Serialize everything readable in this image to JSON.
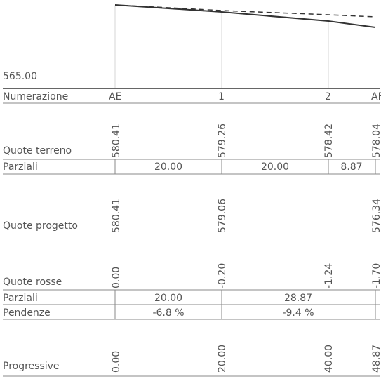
{
  "datum": "565.00",
  "row_labels": {
    "numerazione": "Numerazione",
    "quote_terreno": "Quote terreno",
    "parziali": "Parziali",
    "quote_progetto": "Quote progetto",
    "quote_rosse": "Quote rosse",
    "parziali_2": "Parziali",
    "pendenze": "Pendenze",
    "progressive": "Progressive"
  },
  "sections": [
    "AE",
    "1",
    "2",
    "AF"
  ],
  "quote_terreno": [
    "580.41",
    "579.26",
    "578.42",
    "578.04"
  ],
  "parziali_terreno": [
    "20.00",
    "20.00",
    "8.87"
  ],
  "quote_progetto": [
    "580.41",
    "579.06",
    "576.34"
  ],
  "quote_rosse": [
    "0.00",
    "-0.20",
    "-1.24",
    "-1.70"
  ],
  "parziali_progetto": [
    "20.00",
    "28.87"
  ],
  "pendenze": [
    "-6.8 %",
    "-9.4 %"
  ],
  "progressive": [
    "0.00",
    "20.00",
    "40.00",
    "48.87"
  ],
  "colors": {
    "text": "#555555",
    "lines": "#888888",
    "profile": "#333333"
  }
}
